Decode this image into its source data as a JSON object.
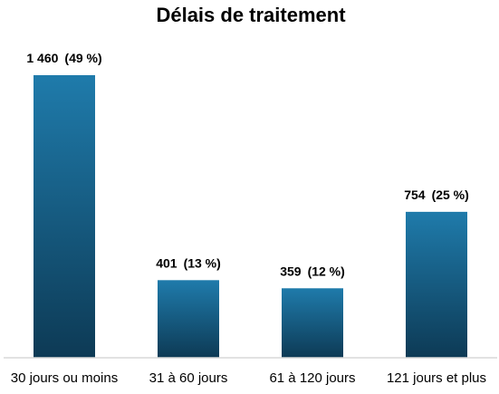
{
  "chart_data": {
    "type": "bar",
    "title": "Délais de traitement",
    "categories": [
      "30 jours ou moins",
      "31 à 60 jours",
      "61 à 120 jours",
      "121 jours et plus"
    ],
    "values": [
      1460,
      401,
      359,
      754
    ],
    "value_labels": [
      "1 460",
      "401",
      "359",
      "754"
    ],
    "percent_labels": [
      "(49 %)",
      "(13 %)",
      "(12 %)",
      "(25 %)"
    ],
    "ylim": [
      0,
      1600
    ],
    "grid": false,
    "legend": "none",
    "colors": {
      "bar_top": "#1f7bab",
      "bar_bottom": "#0d3a55",
      "axis": "#d9d9d9"
    }
  }
}
